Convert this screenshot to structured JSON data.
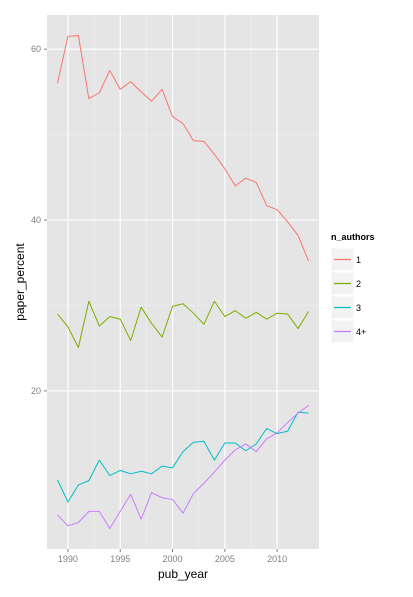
{
  "chart_data": {
    "type": "line",
    "xlabel": "pub_year",
    "ylabel": "paper_percent",
    "xlim": [
      1988,
      2014
    ],
    "ylim": [
      1.5,
      64
    ],
    "x_ticks": [
      1990,
      1995,
      2000,
      2005,
      2010
    ],
    "y_ticks": [
      20,
      40,
      60
    ],
    "grid": true,
    "legend_position": "right",
    "legend_title": "n_authors",
    "x": [
      1989,
      1990,
      1991,
      1992,
      1993,
      1994,
      1995,
      1996,
      1997,
      1998,
      1999,
      2000,
      2001,
      2002,
      2003,
      2004,
      2005,
      2006,
      2007,
      2008,
      2009,
      2010,
      2011,
      2012,
      2013
    ],
    "series": [
      {
        "name": "1",
        "color": "#F8766D",
        "values": [
          56.0,
          61.5,
          61.6,
          54.2,
          54.9,
          57.5,
          55.3,
          56.2,
          55.0,
          53.9,
          55.3,
          52.1,
          51.3,
          49.3,
          49.2,
          47.7,
          46.0,
          44.0,
          44.9,
          44.4,
          41.7,
          41.2,
          39.8,
          38.2,
          35.2
        ]
      },
      {
        "name": "2",
        "color": "#7CAE00",
        "values": [
          29.0,
          27.5,
          25.1,
          30.5,
          27.6,
          28.7,
          28.4,
          25.9,
          29.8,
          27.9,
          26.3,
          29.9,
          30.2,
          29.1,
          27.8,
          30.5,
          28.7,
          29.4,
          28.5,
          29.2,
          28.4,
          29.1,
          29.0,
          27.3,
          29.3
        ]
      },
      {
        "name": "3",
        "color": "#00BFC4",
        "values": [
          9.6,
          7.0,
          9.0,
          9.5,
          11.9,
          10.1,
          10.7,
          10.3,
          10.6,
          10.3,
          11.2,
          11.0,
          12.9,
          14.0,
          14.1,
          11.9,
          13.9,
          13.9,
          13.0,
          13.8,
          15.6,
          15.0,
          15.3,
          17.5,
          17.4
        ]
      },
      {
        "name": "4+",
        "color": "#C77CFF",
        "values": [
          5.5,
          4.2,
          4.6,
          5.9,
          5.9,
          3.9,
          5.9,
          7.9,
          5.0,
          8.1,
          7.5,
          7.3,
          5.7,
          8.0,
          9.2,
          10.5,
          11.9,
          13.1,
          13.8,
          12.9,
          14.4,
          15.1,
          16.3,
          17.4,
          18.3
        ]
      }
    ]
  }
}
